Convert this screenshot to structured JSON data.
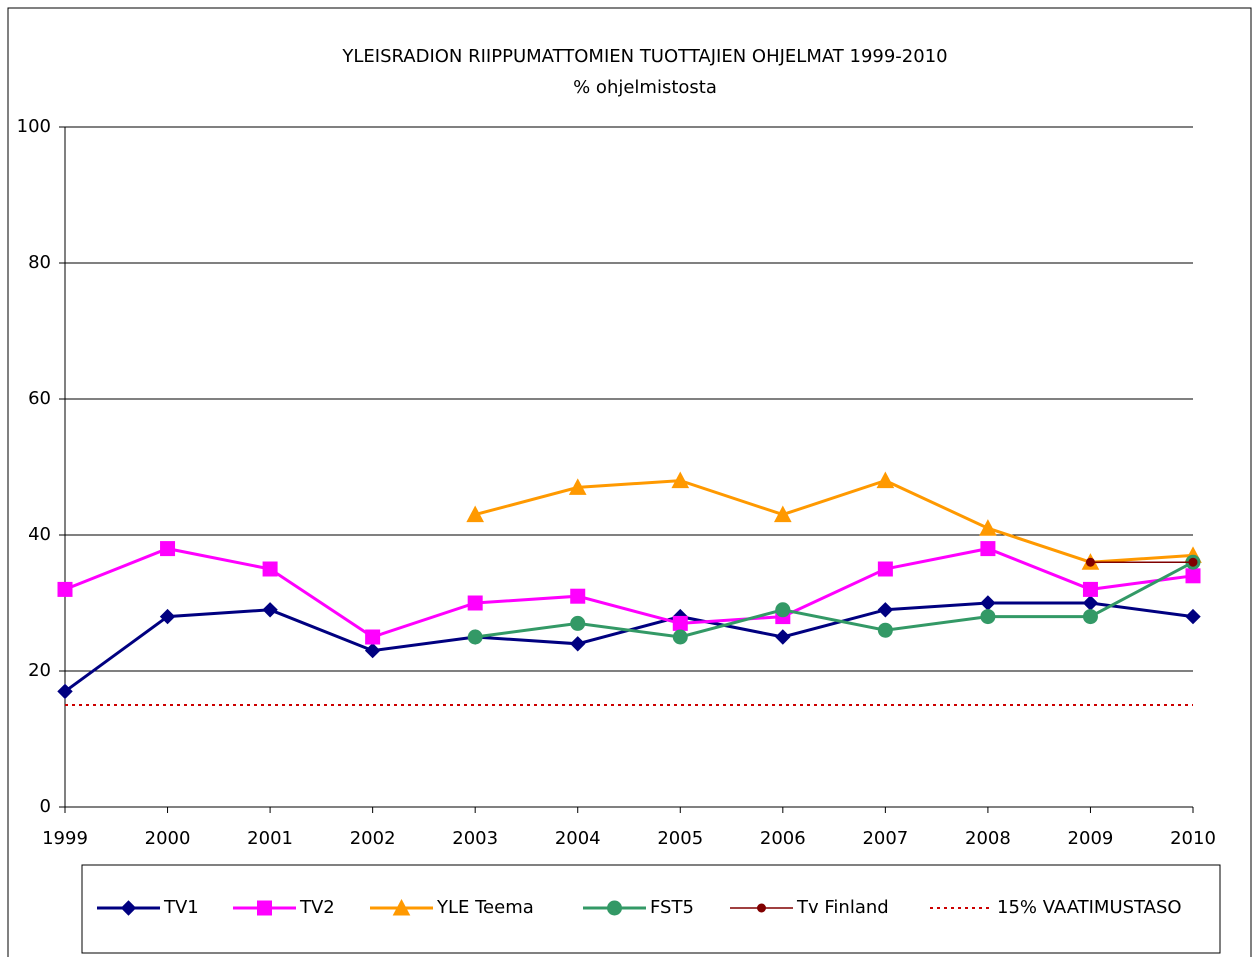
{
  "chart_data": {
    "type": "line",
    "title": "YLEISRADION RIIPPUMATTOMIEN TUOTTAJIEN OHJELMAT 1999-2010",
    "subtitle": "% ohjelmistosta",
    "categories": [
      "1999",
      "2000",
      "2001",
      "2002",
      "2003",
      "2004",
      "2005",
      "2006",
      "2007",
      "2008",
      "2009",
      "2010"
    ],
    "series": [
      {
        "name": "TV1",
        "color": "#000080",
        "marker": "diamond",
        "values": [
          17,
          28,
          29,
          23,
          25,
          24,
          28,
          25,
          29,
          30,
          30,
          28
        ]
      },
      {
        "name": "TV2",
        "color": "#ff00ff",
        "marker": "square",
        "values": [
          32,
          38,
          35,
          25,
          30,
          31,
          27,
          28,
          35,
          38,
          32,
          34
        ]
      },
      {
        "name": "YLE Teema",
        "color": "#ff9900",
        "marker": "triangle",
        "values": [
          null,
          null,
          null,
          null,
          43,
          47,
          48,
          43,
          48,
          41,
          36,
          37
        ]
      },
      {
        "name": "FST5",
        "color": "#339966",
        "marker": "circle",
        "values": [
          null,
          null,
          null,
          null,
          25,
          27,
          25,
          29,
          26,
          28,
          28,
          36
        ]
      },
      {
        "name": "Tv Finland",
        "color": "#800000",
        "marker": "dot",
        "values": [
          null,
          null,
          null,
          null,
          null,
          null,
          null,
          null,
          null,
          null,
          36,
          36
        ]
      },
      {
        "name": "15% VAATIMUSTASO",
        "color": "#cc0000",
        "dashed": true,
        "values": [
          15,
          15,
          15,
          15,
          15,
          15,
          15,
          15,
          15,
          15,
          15,
          15
        ]
      }
    ],
    "ylim": [
      0,
      100
    ],
    "yticks": [
      0,
      20,
      40,
      60,
      80,
      100
    ],
    "grid": true,
    "legend": "bottom"
  }
}
